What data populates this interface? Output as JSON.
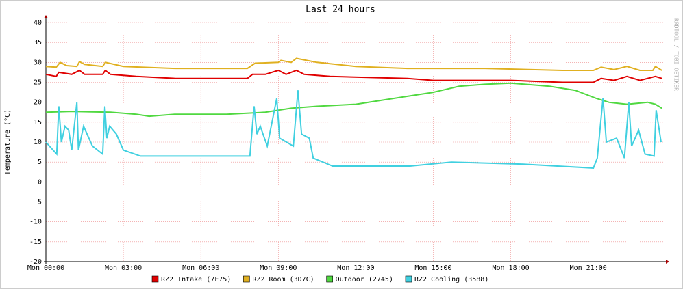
{
  "chart_data": {
    "type": "line",
    "title": "Last 24 hours",
    "y_label": "Temperature (°C)",
    "watermark": "RRDTOOL / TOBI OETIKER",
    "xlim": [
      0,
      23.9
    ],
    "ylim": [
      -20,
      40
    ],
    "xticks": [
      {
        "value": 0,
        "label": "Mon 00:00"
      },
      {
        "value": 3,
        "label": "Mon 03:00"
      },
      {
        "value": 6,
        "label": "Mon 06:00"
      },
      {
        "value": 9,
        "label": "Mon 09:00"
      },
      {
        "value": 12,
        "label": "Mon 12:00"
      },
      {
        "value": 15,
        "label": "Mon 15:00"
      },
      {
        "value": 18,
        "label": "Mon 18:00"
      },
      {
        "value": 21,
        "label": "Mon 21:00"
      }
    ],
    "yticks": [
      -20,
      -15,
      -10,
      -5,
      0,
      5,
      10,
      15,
      20,
      25,
      30,
      35,
      40
    ],
    "grid": true,
    "series": [
      {
        "name": "RZ2 Intake (7F75)",
        "color": "#e00000",
        "x": [
          0,
          0.4,
          0.5,
          1.0,
          1.3,
          1.5,
          2.2,
          2.3,
          2.5,
          3.5,
          5,
          7.8,
          8.0,
          8.5,
          9.0,
          9.3,
          9.7,
          10,
          11,
          14,
          15,
          18,
          20,
          21.2,
          21.5,
          22,
          22.5,
          23,
          23.6,
          23.85
        ],
        "values": [
          27,
          26.5,
          27.5,
          27,
          28,
          27,
          27,
          28,
          27,
          26.5,
          26,
          26,
          27,
          27,
          28,
          27,
          28,
          27,
          26.5,
          26,
          25.5,
          25.5,
          25,
          25,
          26,
          25.5,
          26.5,
          25.5,
          26.5,
          26
        ]
      },
      {
        "name": "RZ2 Room (3D7C)",
        "color": "#e0b020",
        "x": [
          0,
          0.4,
          0.55,
          0.8,
          1.2,
          1.3,
          1.5,
          2.2,
          2.3,
          3,
          5,
          7.8,
          8.1,
          9,
          9.1,
          9.5,
          9.7,
          10.5,
          12,
          14,
          17,
          20,
          21.2,
          21.5,
          22,
          22.5,
          23,
          23.5,
          23.6,
          23.85
        ],
        "values": [
          29,
          28.8,
          30,
          29.2,
          29,
          30.2,
          29.5,
          29,
          30,
          29,
          28.5,
          28.5,
          29.8,
          30,
          30.5,
          30,
          31,
          30,
          29,
          28.5,
          28.5,
          28,
          28,
          28.8,
          28.2,
          29,
          28,
          28,
          29,
          28
        ]
      },
      {
        "name": "Outdoor (2745)",
        "color": "#50d840",
        "x": [
          0,
          1,
          2.5,
          3.5,
          4,
          5,
          7,
          8.5,
          9.5,
          10.5,
          12,
          13,
          14,
          15,
          16,
          17,
          18,
          19.5,
          20.5,
          21.3,
          21.8,
          22.5,
          23.3,
          23.6,
          23.85
        ],
        "values": [
          17.5,
          17.7,
          17.5,
          17,
          16.5,
          17,
          17,
          17.5,
          18.5,
          19,
          19.5,
          20.5,
          21.5,
          22.5,
          24,
          24.5,
          24.8,
          24,
          23,
          21,
          20,
          19.5,
          20,
          19.5,
          18.5
        ]
      },
      {
        "name": "RZ2 Cooling (3588)",
        "color": "#40d0e0",
        "x": [
          0,
          0.42,
          0.5,
          0.6,
          0.74,
          0.88,
          1.0,
          1.2,
          1.26,
          1.46,
          1.8,
          2.2,
          2.28,
          2.36,
          2.47,
          2.73,
          3.0,
          3.66,
          7.9,
          8.06,
          8.17,
          8.3,
          8.57,
          8.94,
          9.05,
          9.58,
          9.76,
          9.9,
          10.2,
          10.35,
          11.1,
          14.1,
          15.7,
          18.4,
          21.2,
          21.35,
          21.57,
          21.7,
          22.1,
          22.4,
          22.57,
          22.68,
          22.95,
          23.2,
          23.55,
          23.63,
          23.82
        ],
        "values": [
          10,
          7,
          19,
          10,
          14,
          13,
          8,
          20,
          8,
          14,
          9,
          7,
          19,
          11,
          14,
          12,
          8,
          6.5,
          6.5,
          19,
          12,
          14,
          9,
          21,
          11,
          9,
          23,
          12,
          11,
          6,
          4,
          4,
          5,
          4.5,
          3.5,
          6,
          21,
          10,
          11,
          6,
          20,
          9,
          13,
          7,
          6.5,
          18,
          10
        ]
      }
    ]
  }
}
